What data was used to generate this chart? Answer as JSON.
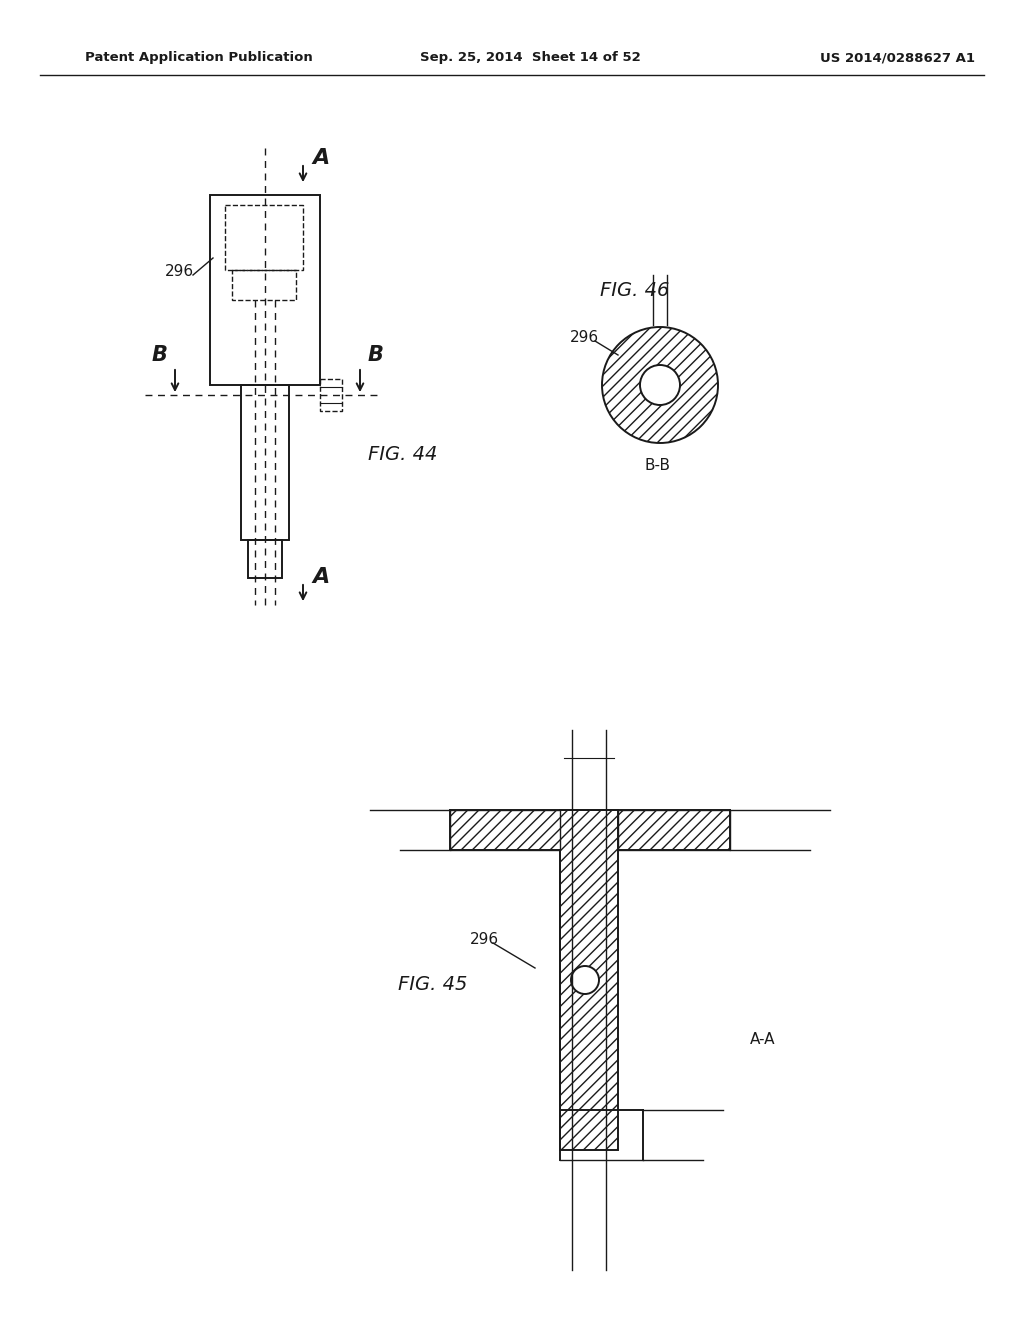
{
  "bg_color": "#ffffff",
  "text_color": "#1a1a1a",
  "header_left": "Patent Application Publication",
  "header_center": "Sep. 25, 2014  Sheet 14 of 52",
  "header_right": "US 2014/0288627 A1",
  "fig44_label": "FIG. 44",
  "fig45_label": "FIG. 45",
  "fig46_label": "FIG. 46",
  "ref_296": "296",
  "ref_AA": "A-A",
  "ref_BB": "B-B"
}
